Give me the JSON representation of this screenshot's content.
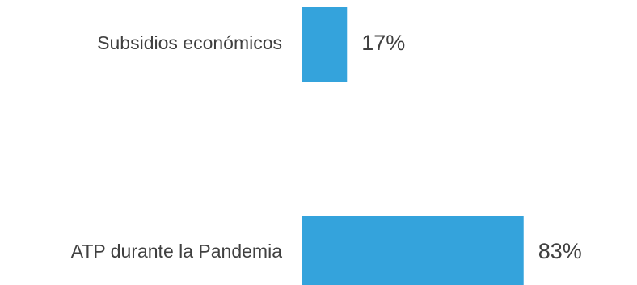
{
  "chart_data": {
    "type": "bar",
    "orientation": "horizontal",
    "categories": [
      "Subsidios económicos",
      "ATP durante la Pandemia"
    ],
    "values": [
      17,
      83
    ],
    "value_labels": [
      "17%",
      "83%"
    ],
    "unit": "%",
    "xlim": [
      0,
      100
    ],
    "bar_color": "#34A3DC",
    "grid": false,
    "legend": "none"
  }
}
